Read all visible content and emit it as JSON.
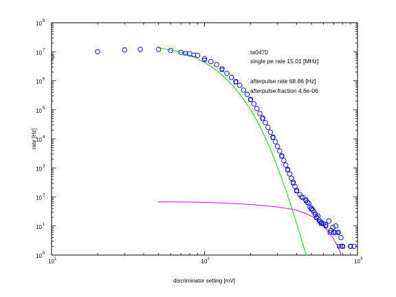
{
  "chart_data": {
    "type": "scatter",
    "xscale": "log",
    "yscale": "log",
    "xlim": [
      10,
      1000
    ],
    "ylim": [
      1,
      100000000
    ],
    "xlabel": "discriminator setting [mV]",
    "ylabel": "rate [Hz]",
    "x_ticks": [
      {
        "base": "10",
        "exp": "1",
        "value": 10
      },
      {
        "base": "10",
        "exp": "2",
        "value": 100
      },
      {
        "base": "10",
        "exp": "3",
        "value": 1000
      }
    ],
    "y_ticks": [
      {
        "base": "10",
        "exp": "0",
        "value": 1
      },
      {
        "base": "10",
        "exp": "1",
        "value": 10
      },
      {
        "base": "10",
        "exp": "2",
        "value": 100
      },
      {
        "base": "10",
        "exp": "3",
        "value": 1000
      },
      {
        "base": "10",
        "exp": "4",
        "value": 10000
      },
      {
        "base": "10",
        "exp": "5",
        "value": 100000
      },
      {
        "base": "10",
        "exp": "6",
        "value": 1000000
      },
      {
        "base": "10",
        "exp": "7",
        "value": 10000000
      },
      {
        "base": "10",
        "exp": "8",
        "value": 100000000
      }
    ],
    "annotations": [
      "ta0470",
      "single pe rate 15.01 [MHz]",
      "afterpulse rate 68.86 [Hz]",
      "afterpulse fraction 4.6e-06"
    ],
    "colors": {
      "circles": "#0000ff",
      "squares": "#0000ff",
      "fit_main": "#00dd00",
      "fit_afterpulse": "#dd00dd",
      "axes": "#000000"
    },
    "series": [
      {
        "marker": "circle",
        "points": [
          [
            10,
            6500000
          ],
          [
            20,
            10000000
          ],
          [
            30,
            11500000
          ],
          [
            38,
            12000000
          ],
          [
            50,
            12000000
          ],
          [
            60,
            11000000
          ],
          [
            70,
            9500000
          ],
          [
            80,
            8500000
          ],
          [
            90,
            7500000
          ],
          [
            100,
            5800000
          ],
          [
            110,
            4600000
          ],
          [
            120,
            3600000
          ],
          [
            130,
            2600000
          ],
          [
            140,
            1800000
          ],
          [
            150,
            1300000
          ],
          [
            160,
            950000
          ],
          [
            170,
            700000
          ],
          [
            180,
            480000
          ],
          [
            190,
            340000
          ],
          [
            200,
            230000
          ],
          [
            210,
            160000
          ],
          [
            220,
            110000
          ],
          [
            230,
            75000
          ],
          [
            240,
            52000
          ],
          [
            250,
            36000
          ],
          [
            260,
            25000
          ],
          [
            270,
            17000
          ],
          [
            280,
            11500
          ],
          [
            290,
            8000
          ],
          [
            300,
            5500
          ],
          [
            310,
            3800
          ],
          [
            320,
            2600
          ],
          [
            330,
            1800
          ],
          [
            340,
            1250
          ],
          [
            350,
            880
          ],
          [
            360,
            620
          ],
          [
            370,
            440
          ],
          [
            380,
            320
          ],
          [
            390,
            230
          ],
          [
            400,
            170
          ],
          [
            420,
            120
          ],
          [
            440,
            95
          ],
          [
            460,
            80
          ],
          [
            470,
            65
          ],
          [
            480,
            60
          ],
          [
            490,
            45
          ],
          [
            500,
            40
          ],
          [
            510,
            35
          ],
          [
            520,
            30
          ],
          [
            530,
            25
          ],
          [
            540,
            20
          ],
          [
            550,
            22
          ],
          [
            560,
            16
          ],
          [
            570,
            14
          ],
          [
            580,
            13
          ],
          [
            600,
            12
          ],
          [
            620,
            11
          ],
          [
            650,
            15
          ],
          [
            670,
            7
          ],
          [
            690,
            9
          ],
          [
            700,
            6
          ],
          [
            720,
            10
          ],
          [
            750,
            6
          ],
          [
            780,
            4
          ],
          [
            800,
            2
          ],
          [
            900,
            2
          ],
          [
            950,
            2
          ]
        ]
      },
      {
        "marker": "square",
        "points": [
          [
            75,
            8800000
          ],
          [
            85,
            7800000
          ],
          [
            100,
            5200000
          ],
          [
            130,
            2400000
          ],
          [
            160,
            900000
          ],
          [
            200,
            220000
          ],
          [
            240,
            50000
          ],
          [
            280,
            11000
          ],
          [
            320,
            2500
          ],
          [
            350,
            850
          ],
          [
            380,
            300
          ],
          [
            400,
            160
          ],
          [
            430,
            100
          ],
          [
            460,
            75
          ],
          [
            500,
            38
          ],
          [
            540,
            19
          ],
          [
            580,
            12
          ],
          [
            620,
            10
          ],
          [
            660,
            6
          ],
          [
            700,
            6
          ],
          [
            720,
            6
          ],
          [
            740,
            6
          ],
          [
            760,
            2
          ],
          [
            780,
            2
          ],
          [
            800,
            2
          ],
          [
            900,
            2
          ]
        ]
      }
    ],
    "lines": [
      {
        "color": "green",
        "points": [
          [
            50,
            13500000
          ],
          [
            60,
            11500000
          ],
          [
            70,
            9300000
          ],
          [
            80,
            7400000
          ],
          [
            90,
            5700000
          ],
          [
            100,
            4300000
          ],
          [
            120,
            2300000
          ],
          [
            140,
            1100000
          ],
          [
            160,
            520000
          ],
          [
            180,
            230000
          ],
          [
            200,
            100000
          ],
          [
            220,
            42000
          ],
          [
            240,
            17000
          ],
          [
            260,
            6800
          ],
          [
            280,
            2700
          ],
          [
            300,
            1050
          ],
          [
            320,
            420
          ],
          [
            340,
            170
          ],
          [
            360,
            70
          ],
          [
            380,
            29
          ],
          [
            400,
            12
          ],
          [
            420,
            5.2
          ],
          [
            440,
            2.3
          ],
          [
            460,
            1.05
          ],
          [
            470,
            0.7
          ]
        ]
      },
      {
        "color": "magenta",
        "points": [
          [
            50,
            68
          ],
          [
            80,
            67
          ],
          [
            100,
            65
          ],
          [
            150,
            60
          ],
          [
            200,
            55
          ],
          [
            250,
            50
          ],
          [
            300,
            45
          ],
          [
            350,
            40
          ],
          [
            400,
            35
          ],
          [
            450,
            28
          ],
          [
            500,
            22
          ],
          [
            550,
            15
          ],
          [
            600,
            10
          ],
          [
            650,
            6
          ],
          [
            700,
            3.5
          ],
          [
            750,
            1.8
          ],
          [
            780,
            1
          ]
        ]
      }
    ]
  }
}
